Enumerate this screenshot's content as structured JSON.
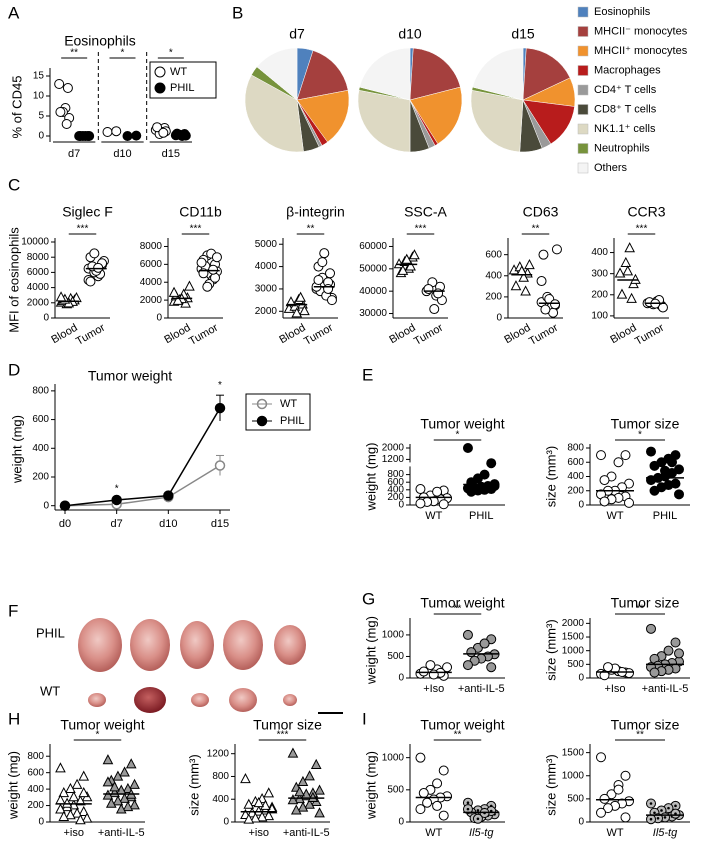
{
  "chart_data": [
    {
      "type": "grouped-dot",
      "panel": "A",
      "title": "Eosinophils",
      "ylabel": "% of CD45",
      "categories": [
        "d7",
        "d10",
        "d15"
      ],
      "series": [
        {
          "name": "WT",
          "marker": "circle",
          "fill": "#ffffff",
          "values": [
            [
              13,
              12,
              7,
              6,
              6,
              4.5,
              3
            ],
            [
              1,
              1.2
            ],
            [
              1.5,
              2,
              1,
              0.5,
              2.2,
              1.2,
              0.8
            ]
          ]
        },
        {
          "name": "PHIL",
          "marker": "circle",
          "fill": "#000000",
          "values": [
            [
              0,
              0,
              0,
              0,
              0,
              0
            ],
            [
              0,
              0.1
            ],
            [
              0.2,
              0.5,
              0,
              0.3,
              0.6,
              0.1
            ]
          ]
        }
      ],
      "significance": [
        "**",
        "*",
        "*"
      ],
      "ylim": [
        -1.5,
        16
      ],
      "yticks": [
        0,
        5,
        10,
        15
      ]
    },
    {
      "type": "pie",
      "panel": "B",
      "labels": [
        "Eosinophils",
        "MHCII⁻ monocytes",
        "MHCII⁺ monocytes",
        "Macrophages",
        "CD4⁺ T cells",
        "CD8⁺ T cells",
        "NK1.1⁺ cells",
        "Neutrophils",
        "Others"
      ],
      "colors": [
        "#4f81bd",
        "#a5403e",
        "#f0922e",
        "#b81c1c",
        "#9a9a9a",
        "#4a4a3a",
        "#ddd9c3",
        "#77933c",
        "#f4f4f4"
      ],
      "pies": [
        {
          "name": "d7",
          "values": [
            5,
            17,
            18,
            2,
            1,
            5,
            35,
            3,
            14
          ]
        },
        {
          "name": "d10",
          "values": [
            1,
            20,
            20,
            1,
            2,
            6,
            28,
            1,
            21
          ]
        },
        {
          "name": "d15",
          "values": [
            1,
            17,
            9,
            14,
            3,
            7,
            27,
            1,
            21
          ]
        }
      ]
    },
    {
      "type": "dot",
      "panel": "C",
      "ylabel": "MFI of eosinophils",
      "title": "Siglec F",
      "categories": [
        "Blood",
        "Tumor"
      ],
      "groups": [
        {
          "marker": "triangle",
          "fill": "#ffffff",
          "values": [
            2000,
            2300,
            2500,
            1800,
            2200,
            2600,
            2100,
            1900,
            2400,
            2700
          ],
          "center": 2200
        },
        {
          "marker": "circle",
          "fill": "#ffffff",
          "values": [
            6500,
            7000,
            5500,
            6000,
            8000,
            7500,
            5800,
            6200,
            6800,
            5000,
            7200,
            6600,
            8500,
            4800
          ],
          "center": 6500
        }
      ],
      "significance": "***",
      "ylim": [
        0,
        10000
      ],
      "yticks": [
        0,
        2000,
        4000,
        6000,
        8000,
        10000
      ]
    },
    {
      "type": "dot",
      "title": "CD11b",
      "categories": [
        "Blood",
        "Tumor"
      ],
      "groups": [
        {
          "marker": "triangle",
          "fill": "#ffffff",
          "values": [
            1800,
            2200,
            2600,
            2000,
            2400,
            3500,
            1600,
            2100,
            1900,
            2800
          ],
          "center": 2200
        },
        {
          "marker": "circle",
          "fill": "#ffffff",
          "values": [
            5500,
            6000,
            4800,
            7000,
            6500,
            5200,
            4300,
            3800,
            5800,
            6200,
            4500,
            7200,
            3500,
            5000,
            6800,
            5400
          ],
          "center": 5300
        }
      ],
      "significance": "***",
      "ylim": [
        0,
        8500
      ],
      "yticks": [
        0,
        2000,
        4000,
        6000,
        8000
      ]
    },
    {
      "type": "dot",
      "title": "β-integrin",
      "categories": [
        "Blood",
        "Tumor"
      ],
      "groups": [
        {
          "marker": "triangle",
          "fill": "#ffffff",
          "values": [
            2100,
            2300,
            2500,
            2200,
            2400,
            2000,
            2600,
            1900
          ],
          "center": 2300
        },
        {
          "marker": "circle",
          "fill": "#ffffff",
          "values": [
            3000,
            3200,
            2800,
            3500,
            4000,
            2600,
            3300,
            4600,
            2900,
            3100,
            3700,
            2700,
            4200,
            3400,
            2500,
            3000
          ],
          "center": 3100
        }
      ],
      "significance": "**",
      "ylim": [
        1700,
        5100
      ],
      "yticks": [
        2000,
        3000,
        4000,
        5000
      ]
    },
    {
      "type": "dot",
      "title": "SSC-A",
      "categories": [
        "Blood",
        "Tumor"
      ],
      "groups": [
        {
          "marker": "triangle",
          "fill": "#ffffff",
          "values": [
            52000,
            55000,
            50000,
            53000,
            48000,
            56000,
            51000,
            54000,
            49000
          ],
          "center": 52000
        },
        {
          "marker": "circle",
          "fill": "#ffffff",
          "values": [
            40000,
            42000,
            38000,
            44000,
            41000,
            36000,
            39000,
            32000
          ],
          "center": 40000
        }
      ],
      "significance": "***",
      "ylim": [
        28000,
        62000
      ],
      "yticks": [
        30000,
        40000,
        50000,
        60000
      ]
    },
    {
      "type": "dot",
      "title": "CD63",
      "categories": [
        "Blood",
        "Tumor"
      ],
      "groups": [
        {
          "marker": "triangle",
          "fill": "#ffffff",
          "values": [
            450,
            420,
            380,
            480,
            300,
            500,
            250,
            440
          ],
          "center": 410
        },
        {
          "marker": "circle",
          "fill": "#ffffff",
          "values": [
            150,
            120,
            100,
            200,
            600,
            650,
            50,
            180,
            80,
            350,
            130
          ],
          "center": 140
        }
      ],
      "significance": "**",
      "ylim": [
        0,
        720
      ],
      "yticks": [
        0,
        200,
        400,
        600
      ]
    },
    {
      "type": "dot",
      "title": "CCR3",
      "categories": [
        "Blood",
        "Tumor"
      ],
      "groups": [
        {
          "marker": "triangle",
          "fill": "#ffffff",
          "values": [
            300,
            250,
            420,
            350,
            200,
            270,
            180,
            310
          ],
          "center": 270
        },
        {
          "marker": "circle",
          "fill": "#ffffff",
          "values": [
            160,
            150,
            170,
            155,
            165,
            140,
            175,
            158
          ],
          "center": 160
        }
      ],
      "significance": "***",
      "ylim": [
        90,
        450
      ],
      "yticks": [
        100,
        200,
        300,
        400
      ]
    },
    {
      "type": "line",
      "panel": "D",
      "title": "Tumor weight",
      "ylabel": "weight (mg)",
      "x": [
        "d0",
        "d7",
        "d10",
        "d15"
      ],
      "series": [
        {
          "name": "WT",
          "color": "#888888",
          "fill": "#ffffff",
          "values": [
            0,
            10,
            60,
            280
          ],
          "errors": [
            0,
            5,
            10,
            70
          ]
        },
        {
          "name": "PHIL",
          "color": "#000000",
          "fill": "#000000",
          "values": [
            0,
            40,
            70,
            680
          ],
          "errors": [
            0,
            8,
            10,
            90
          ]
        }
      ],
      "significance": [
        null,
        "*",
        null,
        "*"
      ],
      "ylim": [
        -30,
        820
      ],
      "yticks": [
        0,
        200,
        400,
        600,
        800
      ]
    },
    {
      "type": "dot",
      "panel": "E",
      "title": "Tumor weight",
      "ylabel": "weight (mg)",
      "categories": [
        "WT",
        "PHIL"
      ],
      "groups": [
        {
          "marker": "circle",
          "fill": "#ffffff",
          "values": [
            420,
            380,
            300,
            250,
            200,
            180,
            150,
            100,
            80,
            40,
            20,
            350
          ],
          "center": 200
        },
        {
          "marker": "circle",
          "fill": "#000000",
          "values": [
            2000,
            1100,
            800,
            700,
            600,
            550,
            500,
            480,
            460,
            440,
            420,
            400,
            380,
            350,
            500
          ],
          "center": 540
        }
      ],
      "significance": "*",
      "ylim": [
        0,
        2000
      ],
      "axis_break": 1200,
      "yticks": [
        0,
        200,
        400,
        600,
        800,
        1200,
        2000
      ]
    },
    {
      "type": "dot",
      "title": "Tumor size",
      "ylabel": "size (mm³)",
      "categories": [
        "WT",
        "PHIL"
      ],
      "groups": [
        {
          "marker": "circle",
          "fill": "#ffffff",
          "values": [
            700,
            700,
            600,
            400,
            350,
            300,
            250,
            200,
            200,
            150,
            120,
            100,
            80,
            50,
            30
          ],
          "center": 200
        },
        {
          "marker": "circle",
          "fill": "#000000",
          "values": [
            750,
            700,
            650,
            600,
            550,
            500,
            450,
            400,
            380,
            350,
            300,
            280,
            250,
            200,
            150,
            600,
            480
          ],
          "center": 380
        }
      ],
      "significance": "*",
      "ylim": [
        0,
        800
      ],
      "yticks": [
        0,
        200,
        400,
        600,
        800
      ]
    },
    {
      "type": "photo",
      "panel": "F",
      "rows": [
        "PHIL",
        "WT"
      ]
    },
    {
      "type": "dot",
      "panel": "G",
      "title": "Tumor weight",
      "ylabel": "weight (mg)",
      "categories": [
        "+Iso",
        "+anti-IL-5"
      ],
      "groups": [
        {
          "marker": "circle",
          "fill": "#ffffff",
          "values": [
            100,
            50,
            200,
            300,
            150,
            250,
            120,
            80
          ],
          "center": 130
        },
        {
          "marker": "circle",
          "fill": "#999999",
          "values": [
            1000,
            900,
            800,
            700,
            600,
            550,
            500,
            450,
            400,
            300,
            250,
            800
          ],
          "center": 560
        }
      ],
      "significance": "**",
      "ylim": [
        0,
        1300
      ],
      "yticks": [
        0,
        500,
        1000
      ]
    },
    {
      "type": "dot",
      "title": "Tumor size",
      "ylabel": "size (mm³)",
      "categories": [
        "+Iso",
        "+anti-IL-5"
      ],
      "groups": [
        {
          "marker": "circle",
          "fill": "#ffffff",
          "values": [
            150,
            200,
            250,
            300,
            100,
            180,
            220,
            350,
            400
          ],
          "center": 220
        },
        {
          "marker": "circle",
          "fill": "#999999",
          "values": [
            1800,
            1300,
            1000,
            800,
            700,
            600,
            550,
            500,
            450,
            400,
            350,
            300,
            250,
            200,
            900
          ],
          "center": 500
        }
      ],
      "significance": "**",
      "ylim": [
        0,
        2050
      ],
      "yticks": [
        0,
        500,
        1000,
        1500,
        2000
      ]
    },
    {
      "type": "dot",
      "panel": "H",
      "title": "Tumor weight",
      "ylabel": "weight (mg)",
      "categories": [
        "+iso",
        "+anti-IL-5"
      ],
      "groups": [
        {
          "marker": "triangle",
          "fill": "#ffffff",
          "values": [
            650,
            550,
            450,
            400,
            350,
            300,
            250,
            200,
            180,
            150,
            120,
            100,
            80,
            60,
            40,
            20,
            300,
            220,
            260,
            350
          ],
          "center": 220
        },
        {
          "marker": "triangle",
          "fill": "#999999",
          "values": [
            750,
            700,
            600,
            550,
            500,
            450,
            400,
            380,
            350,
            320,
            300,
            280,
            250,
            220,
            200,
            180,
            150,
            420,
            480,
            330
          ],
          "center": 340
        }
      ],
      "significance": "*",
      "ylim": [
        0,
        900
      ],
      "yticks": [
        0,
        200,
        400,
        600,
        800
      ]
    },
    {
      "type": "dot",
      "title": "Tumor size",
      "ylabel": "size (mm³)",
      "categories": [
        "+iso",
        "+anti-IL-5"
      ],
      "groups": [
        {
          "marker": "triangle",
          "fill": "#ffffff",
          "values": [
            750,
            500,
            400,
            350,
            300,
            250,
            200,
            180,
            150,
            120,
            100,
            80,
            60,
            40,
            220,
            280,
            330
          ],
          "center": 180
        },
        {
          "marker": "triangle",
          "fill": "#999999",
          "values": [
            1200,
            1000,
            800,
            700,
            600,
            550,
            500,
            450,
            400,
            380,
            350,
            300,
            250,
            200,
            150,
            420,
            480,
            520
          ],
          "center": 420
        }
      ],
      "significance": "***",
      "ylim": [
        0,
        1300
      ],
      "yticks": [
        0,
        400,
        800,
        1200
      ]
    },
    {
      "type": "dot",
      "panel": "I",
      "title": "Tumor weight",
      "ylabel": "weight (mg)",
      "categories": [
        "WT",
        "Il5-tg"
      ],
      "groups": [
        {
          "marker": "circle",
          "fill": "#ffffff",
          "values": [
            1000,
            800,
            600,
            500,
            450,
            400,
            380,
            350,
            300,
            200,
            100,
            250
          ],
          "center": 380
        },
        {
          "marker": "circle-dot",
          "fill": "#bbbbbb",
          "values": [
            300,
            250,
            200,
            180,
            150,
            120,
            100,
            80,
            60,
            200,
            170,
            140,
            50
          ],
          "center": 150
        }
      ],
      "significance": "**",
      "ylim": [
        0,
        1150
      ],
      "yticks": [
        0,
        500,
        1000
      ]
    },
    {
      "type": "dot",
      "title": "Tumor size",
      "ylabel": "size (mm³)",
      "categories": [
        "WT",
        "Il5-tg"
      ],
      "groups": [
        {
          "marker": "circle",
          "fill": "#ffffff",
          "values": [
            1400,
            1000,
            800,
            600,
            500,
            450,
            400,
            350,
            300,
            200,
            100,
            700
          ],
          "center": 480
        },
        {
          "marker": "circle-dot",
          "fill": "#bbbbbb",
          "values": [
            400,
            350,
            300,
            250,
            200,
            150,
            120,
            100,
            80,
            60,
            180
          ],
          "center": 150
        }
      ],
      "significance": "**",
      "ylim": [
        0,
        1600
      ],
      "yticks": [
        0,
        500,
        1000,
        1500
      ]
    }
  ]
}
